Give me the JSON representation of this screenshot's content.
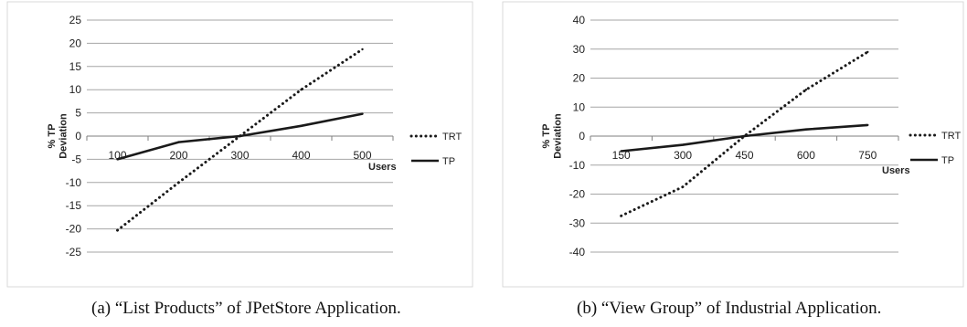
{
  "chart_data": [
    {
      "type": "line",
      "caption": "(a) “List Products” of JPetStore Application.",
      "xlabel": "Users",
      "ylabel": "% TP Deviation",
      "x": [
        100,
        200,
        300,
        400,
        500
      ],
      "ylim": [
        -25,
        25
      ],
      "yticks": [
        -25,
        -20,
        -15,
        -10,
        -5,
        0,
        5,
        10,
        15,
        20,
        25
      ],
      "grid": true,
      "legend_position": "right",
      "series": [
        {
          "name": "TRT",
          "style": "dotted",
          "values": [
            -20.3,
            -10,
            0,
            10,
            18.7
          ]
        },
        {
          "name": "TP",
          "style": "solid",
          "values": [
            -5,
            -1.3,
            0,
            2.2,
            4.8
          ]
        }
      ]
    },
    {
      "type": "line",
      "caption": "(b) “View Group” of Industrial Application.",
      "xlabel": "Users",
      "ylabel": "% TP Deviation",
      "x": [
        150,
        300,
        450,
        600,
        750
      ],
      "ylim": [
        -40,
        40
      ],
      "yticks": [
        -40,
        -30,
        -20,
        -10,
        0,
        10,
        20,
        30,
        40
      ],
      "grid": true,
      "legend_position": "right",
      "series": [
        {
          "name": "TRT",
          "style": "dotted",
          "values": [
            -27.5,
            -17.5,
            0,
            16,
            29
          ]
        },
        {
          "name": "TP",
          "style": "solid",
          "values": [
            -5.2,
            -3,
            0,
            2.3,
            3.8
          ]
        }
      ]
    }
  ]
}
